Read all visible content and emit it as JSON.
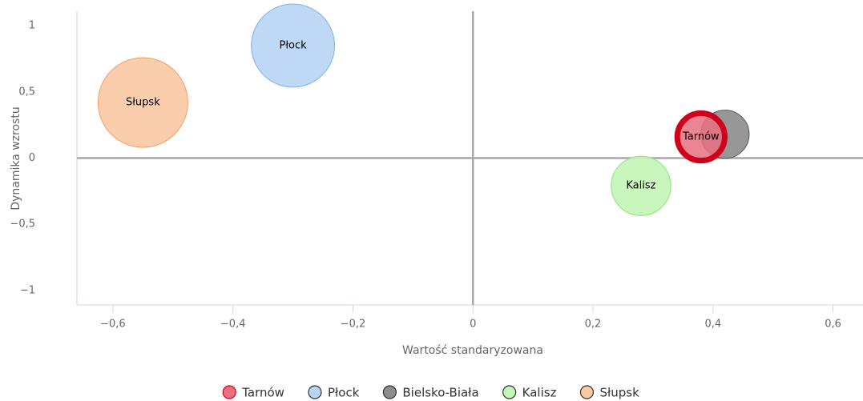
{
  "chart_data": {
    "type": "bubble",
    "x_label": "Wartość standaryzowana",
    "y_label": "Dynamika wzrostu",
    "xlim": [
      -0.66,
      0.65
    ],
    "ylim": [
      -1.11,
      1.11
    ],
    "xticks": [
      {
        "value": -0.6,
        "label": "−0,6"
      },
      {
        "value": -0.4,
        "label": "−0,4"
      },
      {
        "value": -0.2,
        "label": "−0,2"
      },
      0,
      {
        "value": 0.2,
        "label": "0,2"
      },
      {
        "value": 0.4,
        "label": "0,4"
      },
      {
        "value": 0.6,
        "label": "0,6"
      }
    ],
    "yticks": [
      {
        "value": -1,
        "label": "−1"
      },
      {
        "value": -0.5,
        "label": "−0,5"
      },
      0,
      {
        "value": 0.5,
        "label": "0,5"
      },
      1
    ],
    "series": [
      {
        "name": "Tarnów",
        "color": "#e8707f",
        "stroke": "#d0021b",
        "highlighted": true,
        "x": [
          0.38
        ],
        "y": [
          0.16
        ],
        "size": [
          28
        ]
      },
      {
        "name": "Płock",
        "color": "#b8d4f5",
        "stroke": "#7fb0e8",
        "x": [
          -0.3
        ],
        "y": [
          0.85
        ],
        "size": [
          86
        ]
      },
      {
        "name": "Bielsko-Biała",
        "color": "#8c8c8c",
        "stroke": "#555555",
        "x": [
          0.42
        ],
        "y": [
          0.18
        ],
        "size": [
          29
        ]
      },
      {
        "name": "Kalisz",
        "color": "#c3f5b5",
        "stroke": "#8fe07a",
        "x": [
          0.28
        ],
        "y": [
          -0.21
        ],
        "size": [
          44
        ]
      },
      {
        "name": "Słupsk",
        "color": "#f9c9a3",
        "stroke": "#f0a060",
        "x": [
          -0.55
        ],
        "y": [
          0.42
        ],
        "size": [
          100
        ]
      }
    ]
  }
}
